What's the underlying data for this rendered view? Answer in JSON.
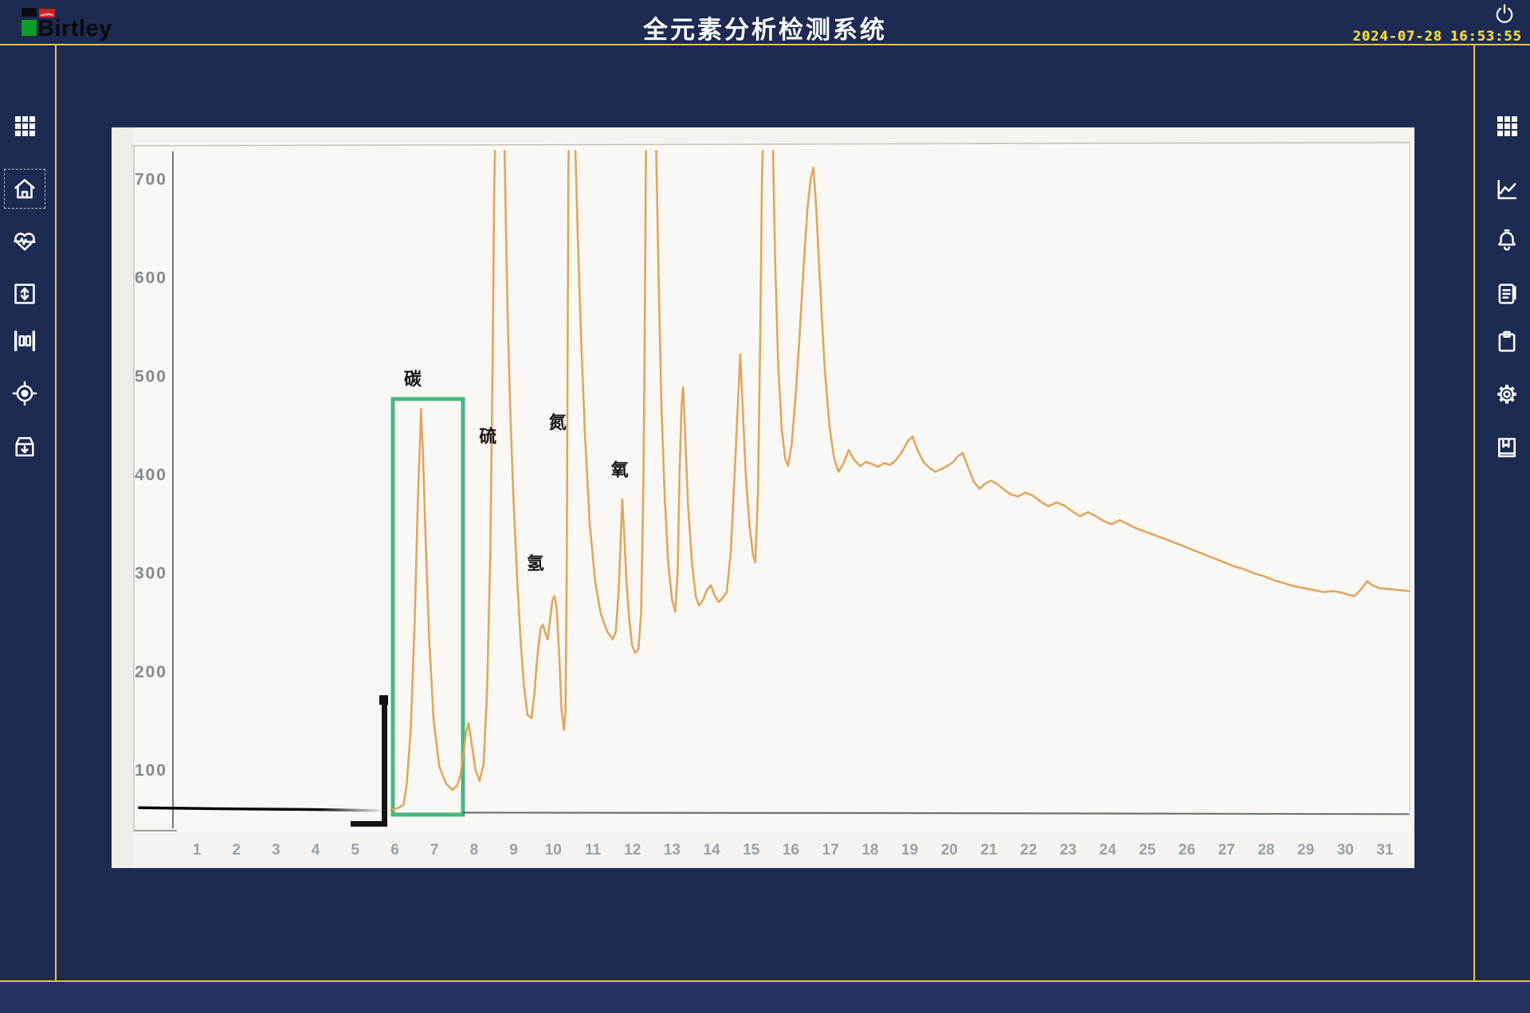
{
  "header": {
    "brand": "Birtley",
    "title": "全元素分析检测系统",
    "date": "2024-07-28",
    "time": "16:53:55"
  },
  "left_sidebar": {
    "items": [
      {
        "icon": "apps-grid-icon",
        "active": false
      },
      {
        "icon": "home-icon",
        "active": true
      },
      {
        "icon": "heartbeat-monitor-icon",
        "active": false
      },
      {
        "icon": "vertical-range-icon",
        "active": false
      },
      {
        "icon": "caliper-measure-icon",
        "active": false
      },
      {
        "icon": "target-icon",
        "active": false
      },
      {
        "icon": "archive-box-icon",
        "active": false
      }
    ]
  },
  "right_sidebar": {
    "items": [
      {
        "icon": "apps-grid-icon"
      },
      {
        "icon": "trend-chart-icon"
      },
      {
        "icon": "alarm-bell-icon"
      },
      {
        "icon": "report-icon"
      },
      {
        "icon": "clipboard-icon"
      },
      {
        "icon": "settings-gear-icon"
      },
      {
        "icon": "save-book-icon"
      }
    ]
  },
  "chart_data": {
    "type": "line",
    "title": "",
    "xlabel": "",
    "ylabel": "",
    "x_ticks": [
      1,
      2,
      3,
      4,
      5,
      6,
      7,
      8,
      9,
      10,
      11,
      12,
      13,
      14,
      15,
      16,
      17,
      18,
      19,
      20,
      21,
      22,
      23,
      24,
      25,
      26,
      27,
      28,
      29,
      30,
      31
    ],
    "y_ticks": [
      700,
      600,
      500,
      400,
      300,
      200,
      100
    ],
    "grid": false,
    "off_scale_clip_value": 728,
    "annotations": [
      {
        "label": "碳",
        "element": "carbon",
        "t": 6.45,
        "v": 490
      },
      {
        "label": "硫",
        "element": "sulfur",
        "t": 8.35,
        "v": 432
      },
      {
        "label": "氮",
        "element": "nitrogen",
        "t": 10.11,
        "v": 446
      },
      {
        "label": "氢",
        "element": "hydrogen",
        "t": 9.55,
        "v": 303
      },
      {
        "label": "氧",
        "element": "oxygen",
        "t": 11.68,
        "v": 398
      }
    ],
    "peaks": [
      {
        "element": "carbon",
        "t": 6.66,
        "v": 466,
        "off_scale": false
      },
      {
        "element": "sulfur",
        "t": 8.65,
        "v": 728,
        "off_scale": true
      },
      {
        "element": "hydrogen",
        "t": 10.03,
        "v": 276,
        "off_scale": false
      },
      {
        "element": "nitrogen",
        "t": 10.48,
        "v": 728,
        "off_scale": true
      },
      {
        "element": "oxygen",
        "t": 11.74,
        "v": 374,
        "off_scale": false
      }
    ],
    "highlight_box": {
      "element": "carbon",
      "t0": 5.95,
      "t1": 7.72,
      "v0": 54,
      "v1": 476,
      "color": "#45b97c"
    },
    "series": [
      {
        "name": "zero-baseline",
        "color": "#55595f",
        "width": 2.2,
        "opacity": 0.85,
        "points": [
          [
            7.72,
            56
          ],
          [
            19,
            55.5
          ],
          [
            31.6,
            54.5
          ]
        ]
      },
      {
        "name": "reagent-baseline-red",
        "color": "#b7362c",
        "width": 3.5,
        "fade": true,
        "points": [
          [
            -0.45,
            61
          ],
          [
            1.5,
            60
          ],
          [
            3,
            59.5
          ],
          [
            4.3,
            59
          ],
          [
            5.6,
            58
          ]
        ]
      },
      {
        "name": "chromatogram",
        "color": "#dfa159",
        "width": 2.6,
        "opacity": 0.95,
        "points": [
          [
            5.9,
            59
          ],
          [
            6.1,
            61
          ],
          [
            6.22,
            64
          ],
          [
            6.3,
            85
          ],
          [
            6.4,
            140
          ],
          [
            6.5,
            250
          ],
          [
            6.58,
            370
          ],
          [
            6.64,
            440
          ],
          [
            6.66,
            466
          ],
          [
            6.71,
            420
          ],
          [
            6.78,
            330
          ],
          [
            6.87,
            230
          ],
          [
            6.98,
            150
          ],
          [
            7.12,
            103
          ],
          [
            7.3,
            85
          ],
          [
            7.46,
            79
          ],
          [
            7.58,
            84
          ],
          [
            7.66,
            95
          ],
          [
            7.74,
            118
          ],
          [
            7.8,
            138
          ],
          [
            7.86,
            147
          ],
          [
            7.94,
            126
          ],
          [
            8.04,
            99
          ],
          [
            8.14,
            88
          ],
          [
            8.24,
            105
          ],
          [
            8.33,
            180
          ],
          [
            8.41,
            320
          ],
          [
            8.47,
            520
          ],
          [
            8.51,
            690
          ],
          [
            8.53,
            728
          ],
          null,
          [
            8.77,
            728
          ],
          [
            8.8,
            660
          ],
          [
            8.85,
            560
          ],
          [
            8.91,
            470
          ],
          [
            8.99,
            380
          ],
          [
            9.08,
            300
          ],
          [
            9.17,
            235
          ],
          [
            9.26,
            185
          ],
          [
            9.35,
            155
          ],
          [
            9.45,
            152
          ],
          [
            9.52,
            175
          ],
          [
            9.6,
            215
          ],
          [
            9.68,
            243
          ],
          [
            9.74,
            247
          ],
          [
            9.8,
            238
          ],
          [
            9.86,
            232
          ],
          [
            9.92,
            252
          ],
          [
            9.98,
            272
          ],
          [
            10.03,
            276
          ],
          [
            10.09,
            262
          ],
          [
            10.15,
            215
          ],
          [
            10.21,
            160
          ],
          [
            10.27,
            140
          ],
          [
            10.31,
            160
          ],
          [
            10.34,
            300
          ],
          [
            10.36,
            500
          ],
          [
            10.38,
            700
          ],
          [
            10.39,
            728
          ],
          null,
          [
            10.56,
            728
          ],
          [
            10.62,
            640
          ],
          [
            10.7,
            540
          ],
          [
            10.8,
            440
          ],
          [
            10.92,
            350
          ],
          [
            11.06,
            290
          ],
          [
            11.2,
            258
          ],
          [
            11.36,
            240
          ],
          [
            11.5,
            232
          ],
          [
            11.58,
            240
          ],
          [
            11.65,
            280
          ],
          [
            11.7,
            330
          ],
          [
            11.74,
            374
          ],
          [
            11.79,
            340
          ],
          [
            11.85,
            290
          ],
          [
            11.92,
            252
          ],
          [
            11.99,
            226
          ],
          [
            12.07,
            218
          ],
          [
            12.15,
            222
          ],
          [
            12.22,
            260
          ],
          [
            12.28,
            400
          ],
          [
            12.32,
            600
          ],
          [
            12.34,
            728
          ],
          null,
          [
            12.6,
            728
          ],
          [
            12.66,
            600
          ],
          [
            12.73,
            470
          ],
          [
            12.81,
            380
          ],
          [
            12.9,
            310
          ],
          [
            13.0,
            272
          ],
          [
            13.08,
            260
          ],
          [
            13.14,
            300
          ],
          [
            13.19,
            400
          ],
          [
            13.24,
            470
          ],
          [
            13.28,
            488
          ],
          [
            13.33,
            440
          ],
          [
            13.4,
            370
          ],
          [
            13.5,
            310
          ],
          [
            13.6,
            275
          ],
          [
            13.68,
            266
          ],
          [
            13.78,
            272
          ],
          [
            13.88,
            282
          ],
          [
            13.98,
            287
          ],
          [
            14.08,
            276
          ],
          [
            14.18,
            270
          ],
          [
            14.28,
            274
          ],
          [
            14.38,
            280
          ],
          [
            14.48,
            320
          ],
          [
            14.58,
            400
          ],
          [
            14.66,
            470
          ],
          [
            14.72,
            521
          ],
          [
            14.78,
            470
          ],
          [
            14.86,
            400
          ],
          [
            14.95,
            350
          ],
          [
            15.04,
            318
          ],
          [
            15.1,
            310
          ],
          [
            15.17,
            380
          ],
          [
            15.23,
            550
          ],
          [
            15.27,
            700
          ],
          [
            15.29,
            728
          ],
          null,
          [
            15.55,
            728
          ],
          [
            15.6,
            620
          ],
          [
            15.68,
            510
          ],
          [
            15.77,
            445
          ],
          [
            15.86,
            415
          ],
          [
            15.93,
            408
          ],
          [
            16.02,
            430
          ],
          [
            16.12,
            480
          ],
          [
            16.22,
            540
          ],
          [
            16.32,
            610
          ],
          [
            16.42,
            670
          ],
          [
            16.5,
            700
          ],
          [
            16.57,
            711
          ],
          [
            16.64,
            670
          ],
          [
            16.74,
            590
          ],
          [
            16.85,
            510
          ],
          [
            16.97,
            450
          ],
          [
            17.08,
            418
          ],
          [
            17.2,
            402
          ],
          [
            17.32,
            410
          ],
          [
            17.46,
            424
          ],
          [
            17.6,
            414
          ],
          [
            17.75,
            408
          ],
          [
            17.9,
            412
          ],
          [
            18.05,
            410
          ],
          [
            18.2,
            407
          ],
          [
            18.35,
            411
          ],
          [
            18.5,
            409
          ],
          [
            18.65,
            414
          ],
          [
            18.8,
            422
          ],
          [
            18.95,
            433
          ],
          [
            19.07,
            438
          ],
          [
            19.2,
            424
          ],
          [
            19.35,
            412
          ],
          [
            19.5,
            406
          ],
          [
            19.65,
            402
          ],
          [
            19.8,
            405
          ],
          [
            19.95,
            408
          ],
          [
            20.1,
            412
          ],
          [
            20.22,
            418
          ],
          [
            20.34,
            421
          ],
          [
            20.48,
            406
          ],
          [
            20.62,
            392
          ],
          [
            20.76,
            385
          ],
          [
            20.9,
            390
          ],
          [
            21.05,
            393
          ],
          [
            21.2,
            390
          ],
          [
            21.38,
            384
          ],
          [
            21.56,
            379
          ],
          [
            21.74,
            377
          ],
          [
            21.92,
            381
          ],
          [
            22.1,
            378
          ],
          [
            22.3,
            372
          ],
          [
            22.5,
            367
          ],
          [
            22.7,
            371
          ],
          [
            22.9,
            368
          ],
          [
            23.1,
            362
          ],
          [
            23.3,
            357
          ],
          [
            23.5,
            361
          ],
          [
            23.7,
            357
          ],
          [
            23.9,
            352
          ],
          [
            24.1,
            349
          ],
          [
            24.3,
            353
          ],
          [
            24.5,
            349
          ],
          [
            24.7,
            345
          ],
          [
            24.9,
            342
          ],
          [
            25.1,
            339
          ],
          [
            25.3,
            336
          ],
          [
            25.5,
            333
          ],
          [
            25.7,
            330
          ],
          [
            25.95,
            326
          ],
          [
            26.2,
            322
          ],
          [
            26.45,
            318
          ],
          [
            26.7,
            314
          ],
          [
            26.95,
            310
          ],
          [
            27.2,
            306
          ],
          [
            27.45,
            303
          ],
          [
            27.7,
            299
          ],
          [
            27.95,
            296
          ],
          [
            28.2,
            292
          ],
          [
            28.45,
            289
          ],
          [
            28.7,
            286
          ],
          [
            28.95,
            284
          ],
          [
            29.2,
            282
          ],
          [
            29.45,
            280
          ],
          [
            29.7,
            281
          ],
          [
            29.95,
            279
          ],
          [
            30.1,
            277
          ],
          [
            30.24,
            276
          ],
          [
            30.4,
            283
          ],
          [
            30.55,
            291
          ],
          [
            30.68,
            287
          ],
          [
            30.85,
            284
          ],
          [
            31.1,
            283
          ],
          [
            31.35,
            282
          ],
          [
            31.6,
            281
          ]
        ]
      }
    ]
  }
}
